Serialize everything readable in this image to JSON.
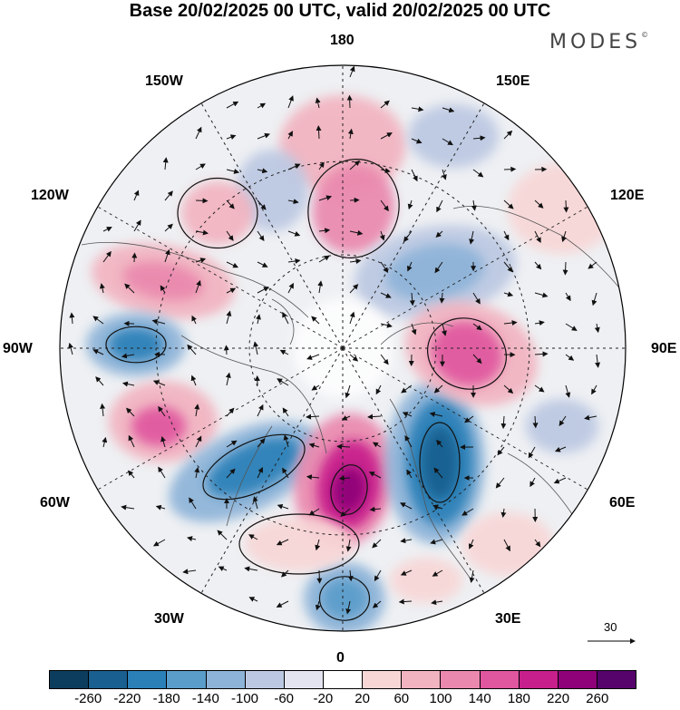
{
  "title": "Base 20/02/2025 00 UTC, valid 20/02/2025 00 UTC",
  "brand": {
    "name": "MODES",
    "mark": "©"
  },
  "map": {
    "projection": "north-polar-stereographic",
    "center": "North Pole",
    "longitude_labels": {
      "top": "180",
      "bottom": "0",
      "left": "90W",
      "right": "90E",
      "upper_left_1": "150W",
      "upper_left_2": "120W",
      "upper_right_1": "150E",
      "upper_right_2": "120E",
      "lower_left_1": "60W",
      "lower_left_2": "30W",
      "lower_right_1": "60E",
      "lower_right_2": "30E"
    },
    "field": "geopotential height anomaly with wind vectors",
    "reference_vector": "30",
    "colors": {
      "negative_extreme": "#0b3a5c",
      "positive_extreme": "#4b006e",
      "neutral": "#ffffff",
      "land_line": "#555555"
    }
  },
  "colorbar": {
    "colors": [
      "#0d3d5e",
      "#195f8f",
      "#2b80b8",
      "#5a9cca",
      "#8db3d8",
      "#bcc8e2",
      "#e4e4f0",
      "#ffffff",
      "#f8d6d6",
      "#f2b3c0",
      "#ea88ad",
      "#e0569f",
      "#c71f8b",
      "#8e0178",
      "#56046c"
    ],
    "ticks": [
      "-260",
      "-220",
      "-180",
      "-140",
      "-100",
      "-60",
      "-20",
      "20",
      "60",
      "100",
      "140",
      "180",
      "220",
      "260"
    ]
  }
}
